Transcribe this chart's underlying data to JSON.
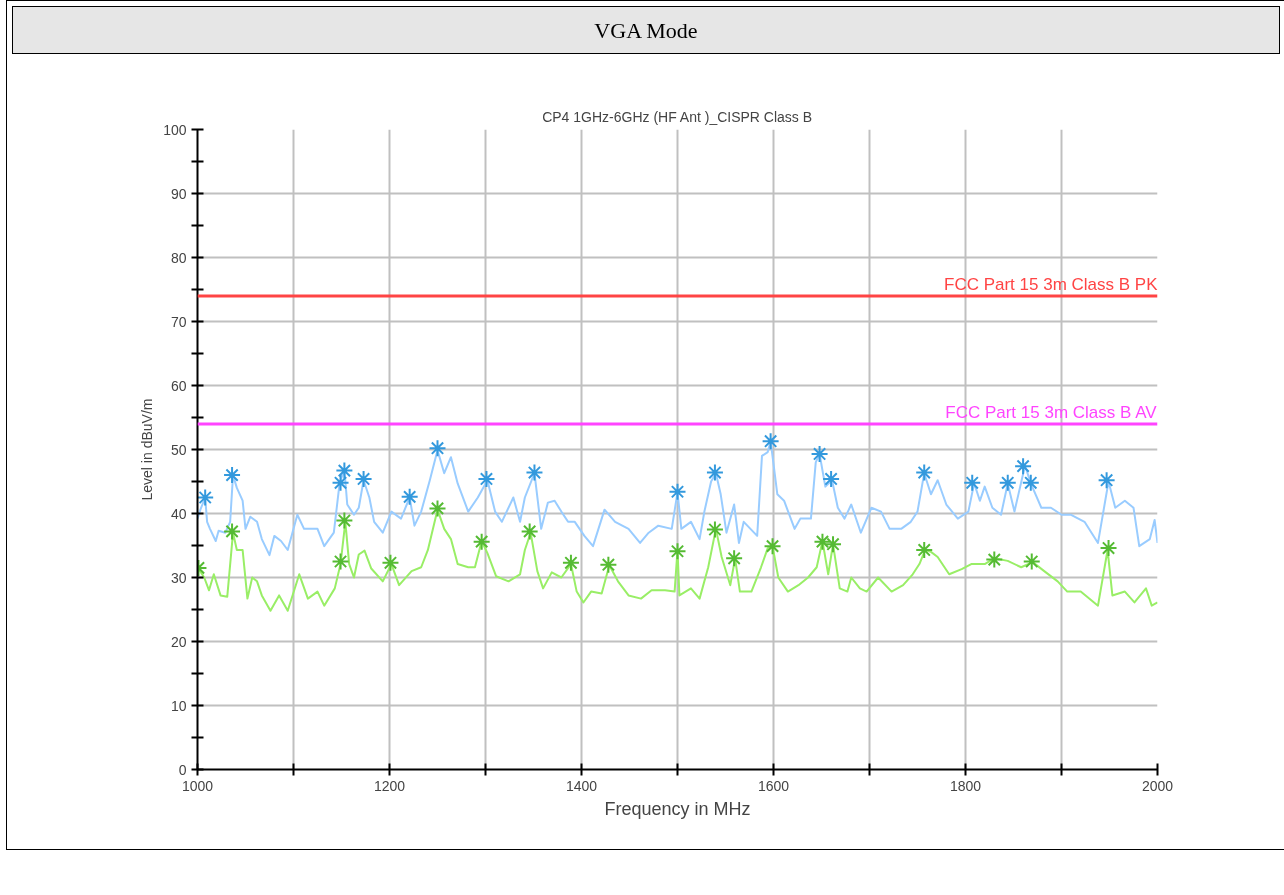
{
  "chart_data": {
    "type": "line",
    "title": "VGA Mode",
    "subtitle": "CP4 1GHz-6GHz (HF Ant )_CISPR Class B",
    "xlabel": "Frequency in MHz",
    "ylabel": "Level in dBuV/m",
    "xlim": [
      1000,
      2000
    ],
    "xticks": [
      1000,
      {
        "value": 1100,
        "label": null
      },
      1200,
      {
        "value": 1300,
        "label": null
      },
      1400,
      {
        "value": 1500,
        "label": null
      },
      1600,
      {
        "value": 1700,
        "label": null
      },
      1800,
      {
        "value": 1900,
        "label": null
      },
      2000
    ],
    "ylim": [
      0,
      100
    ],
    "yticks": [
      0,
      {
        "value": 5,
        "label": null
      },
      10,
      {
        "value": 15,
        "label": null
      },
      20,
      {
        "value": 25,
        "label": null
      },
      30,
      {
        "value": 35,
        "label": null
      },
      40,
      {
        "value": 45,
        "label": null
      },
      50,
      {
        "value": 55,
        "label": null
      },
      60,
      {
        "value": 65,
        "label": null
      },
      70,
      {
        "value": 75,
        "label": null
      },
      80,
      {
        "value": 85,
        "label": null
      },
      90,
      {
        "value": 95,
        "label": null
      },
      100
    ],
    "grid": true,
    "series": [
      {
        "color": "#99ccff",
        "x": [
          1000,
          1003,
          1008,
          1010,
          1013,
          1019,
          1022,
          1029,
          1034,
          1037,
          1041,
          1047,
          1050,
          1055,
          1062,
          1067,
          1075,
          1080,
          1087,
          1094,
          1104,
          1111,
          1125,
          1132,
          1142,
          1148,
          1153,
          1156,
          1163,
          1168,
          1173,
          1179,
          1184,
          1193,
          1202,
          1212,
          1221,
          1226,
          1233,
          1242,
          1250,
          1257,
          1264,
          1271,
          1282,
          1292,
          1302,
          1310,
          1317,
          1329,
          1336,
          1341,
          1351,
          1358,
          1365,
          1372,
          1379,
          1386,
          1393,
          1403,
          1412,
          1424,
          1435,
          1449,
          1461,
          1470,
          1480,
          1494,
          1500,
          1504,
          1514,
          1523,
          1528,
          1535,
          1540,
          1545,
          1551,
          1559,
          1564,
          1569,
          1576,
          1583,
          1588,
          1594,
          1597,
          1604,
          1611,
          1622,
          1628,
          1639,
          1644,
          1648,
          1654,
          1661,
          1667,
          1674,
          1681,
          1691,
          1702,
          1712,
          1721,
          1733,
          1743,
          1750,
          1757,
          1764,
          1771,
          1780,
          1792,
          1803,
          1809,
          1815,
          1820,
          1828,
          1837,
          1844,
          1851,
          1862,
          1868,
          1879,
          1889,
          1900,
          1910,
          1924,
          1938,
          1949,
          1956,
          1966,
          1975,
          1981,
          1992,
          1997,
          2000
        ],
        "values": [
          39.2,
          40.6,
          42.5,
          38.7,
          37.6,
          35.7,
          37.3,
          37,
          38.7,
          46,
          44,
          42,
          37.6,
          39.5,
          38.7,
          36,
          33.5,
          36.5,
          35.7,
          34.3,
          39.8,
          37.6,
          37.6,
          34.9,
          37,
          44.7,
          46.9,
          41.4,
          39.8,
          40.9,
          45.2,
          42.5,
          38.7,
          37,
          40.3,
          39.2,
          42.5,
          38.1,
          40.3,
          45.2,
          49.9,
          46.3,
          48.8,
          44.7,
          40.3,
          42.5,
          45.2,
          40.3,
          38.7,
          42.5,
          38.7,
          42.5,
          46.3,
          37.6,
          41.7,
          42,
          40.3,
          38.7,
          38.7,
          36.5,
          34.9,
          40.6,
          38.7,
          37.6,
          35.4,
          37,
          38.1,
          37.6,
          43.3,
          37.6,
          38.7,
          36,
          40.3,
          45,
          46.3,
          43,
          37,
          41.4,
          35.4,
          38.7,
          37.6,
          36.5,
          49,
          49.6,
          51.3,
          43,
          42,
          37.6,
          39.2,
          39.2,
          48,
          49.3,
          44.2,
          45.2,
          40.9,
          39.2,
          41.4,
          37,
          40.9,
          40.3,
          37.6,
          37.6,
          38.7,
          40.3,
          46.3,
          43,
          45.2,
          41.4,
          39.2,
          40.3,
          44.7,
          42,
          44.2,
          40.9,
          39.8,
          44.7,
          40.3,
          47.5,
          44.7,
          40.9,
          40.9,
          39.8,
          39.8,
          38.7,
          35.4,
          45,
          40.9,
          42,
          40.9,
          34.9,
          36,
          39,
          35.4
        ]
      },
      {
        "color": "#99ee66",
        "x": [
          1000,
          1007,
          1012,
          1017,
          1024,
          1031,
          1037,
          1041,
          1047,
          1052,
          1057,
          1062,
          1067,
          1076,
          1085,
          1094,
          1106,
          1115,
          1125,
          1132,
          1143,
          1149,
          1154,
          1158,
          1163,
          1168,
          1174,
          1181,
          1193,
          1202,
          1210,
          1223,
          1233,
          1240,
          1250,
          1257,
          1264,
          1271,
          1282,
          1289,
          1296,
          1302,
          1311,
          1324,
          1336,
          1341,
          1347,
          1354,
          1360,
          1369,
          1379,
          1389,
          1395,
          1402,
          1410,
          1421,
          1429,
          1438,
          1449,
          1462,
          1473,
          1487,
          1497,
          1500,
          1502,
          1514,
          1523,
          1532,
          1540,
          1546,
          1555,
          1560,
          1565,
          1577,
          1587,
          1594,
          1599,
          1605,
          1615,
          1626,
          1636,
          1645,
          1651,
          1657,
          1662,
          1669,
          1677,
          1681,
          1690,
          1697,
          1709,
          1723,
          1735,
          1745,
          1752,
          1758,
          1764,
          1771,
          1783,
          1796,
          1806,
          1820,
          1830,
          1844,
          1858,
          1870,
          1882,
          1896,
          1906,
          1920,
          1938,
          1948,
          1953,
          1966,
          1976,
          1988,
          1994,
          2000
        ],
        "values": [
          31.6,
          30,
          28,
          30.5,
          27.2,
          27,
          37,
          34.3,
          34.3,
          26.7,
          30,
          29.4,
          27.2,
          24.8,
          27.2,
          24.8,
          30.5,
          26.7,
          27.8,
          25.6,
          28.3,
          32.1,
          38.7,
          32.1,
          30,
          33.6,
          34.2,
          31.4,
          29.4,
          32.1,
          28.8,
          31,
          31.6,
          34.3,
          40.6,
          37.6,
          36,
          32.1,
          31.6,
          31.6,
          35.7,
          33.8,
          30.2,
          29.4,
          30.5,
          34.3,
          37,
          31,
          28.3,
          30.8,
          30,
          32.1,
          27.8,
          26.1,
          27.8,
          27.5,
          31.9,
          29.4,
          27.2,
          26.7,
          28,
          28,
          27.8,
          34.3,
          27.2,
          28.3,
          26.7,
          31.6,
          37.6,
          33.2,
          28.8,
          33,
          27.8,
          27.8,
          31.6,
          34.6,
          34.9,
          30,
          27.8,
          28.8,
          30,
          31.6,
          35.7,
          30.5,
          35.2,
          28.3,
          27.8,
          30,
          28.3,
          27.8,
          30,
          27.8,
          28.8,
          30.5,
          32.1,
          34.3,
          34,
          33.2,
          30.5,
          31.3,
          32.1,
          32.1,
          33,
          32.6,
          31.6,
          32.4,
          31,
          29.4,
          27.8,
          27.8,
          25.6,
          34.3,
          27.2,
          27.8,
          26.1,
          28.3,
          25.6,
          26.1
        ]
      },
      {
        "type": "scatter",
        "marker": "cross",
        "color": "#3399dd",
        "x": [
          1008,
          1036,
          1149,
          1153,
          1173,
          1221,
          1250,
          1301,
          1351,
          1500,
          1539,
          1597,
          1648,
          1660,
          1757,
          1807,
          1844,
          1860,
          1868,
          1947
        ],
        "values": [
          42.5,
          46,
          44.8,
          46.7,
          45.4,
          42.6,
          50.2,
          45.4,
          46.4,
          43.4,
          46.4,
          51.3,
          49.3,
          45.4,
          46.4,
          44.8,
          44.8,
          47.4,
          44.8,
          45.2
        ]
      },
      {
        "type": "scatter",
        "marker": "cross",
        "color": "#55bb33",
        "x": [
          1001,
          1036,
          1149,
          1153,
          1201,
          1250,
          1296,
          1346,
          1389,
          1428,
          1500,
          1539,
          1559,
          1599,
          1651,
          1662,
          1757,
          1830,
          1869,
          1949
        ],
        "values": [
          31.5,
          37.2,
          32.5,
          38.9,
          32.3,
          40.8,
          35.6,
          37.2,
          32.3,
          32,
          34.1,
          37.5,
          33,
          34.9,
          35.6,
          35.2,
          34.3,
          32.8,
          32.5,
          34.6
        ]
      }
    ],
    "ref_lines": [
      {
        "axis": "y",
        "value": 74,
        "label": "FCC Part 15 3m Class B PK",
        "color": "#ff4444"
      },
      {
        "axis": "y",
        "value": 54,
        "label": "FCC Part 15 3m Class B AV",
        "color": "#ff44ff"
      }
    ]
  }
}
